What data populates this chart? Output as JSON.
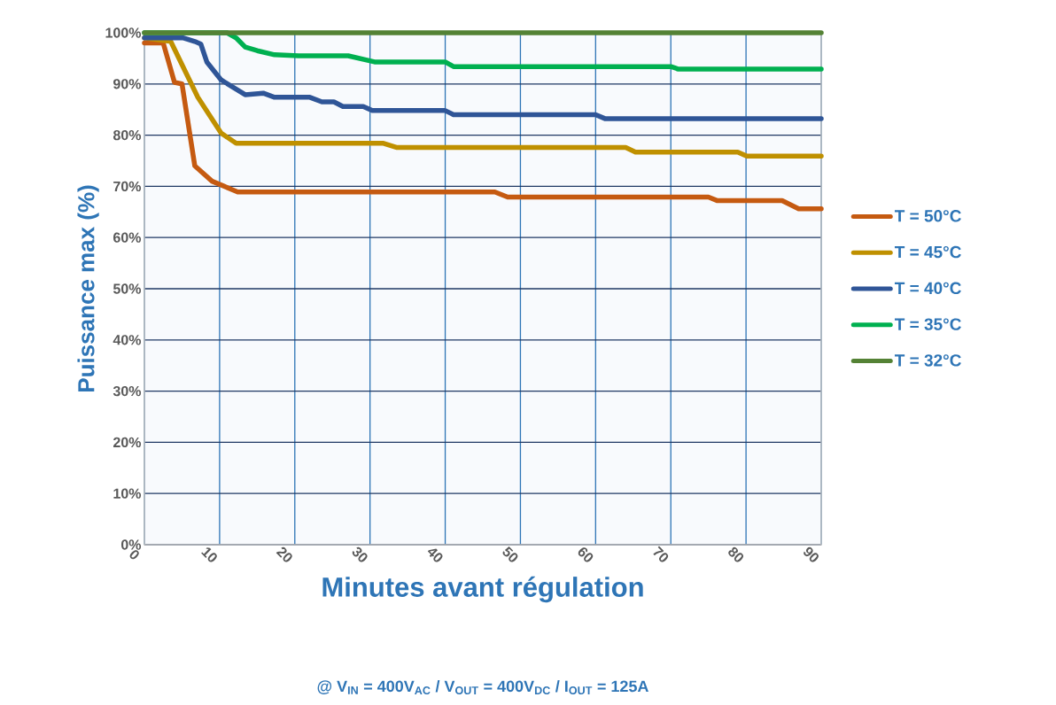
{
  "chart_data": {
    "type": "line",
    "xlabel": "Minutes avant régulation",
    "ylabel": "Puissance max (%)",
    "annotations": [
      "@ V$_{IN}$ = 400V$_{AC}$ / V$_{OUT}$ = 400V$_{DC}$ / I$_{OUT}$ = 125A"
    ],
    "xlim": [
      0,
      90
    ],
    "xticks": [
      0,
      10,
      20,
      30,
      40,
      50,
      60,
      70,
      80,
      90
    ],
    "ylim": [
      0,
      100
    ],
    "yticks": [
      {
        "value": 0,
        "label": "0%"
      },
      {
        "value": 10,
        "label": "10%"
      },
      {
        "value": 20,
        "label": "20%"
      },
      {
        "value": 30,
        "label": "30%"
      },
      {
        "value": 40,
        "label": "40%"
      },
      {
        "value": 50,
        "label": "50%"
      },
      {
        "value": 60,
        "label": "60%"
      },
      {
        "value": 70,
        "label": "70%"
      },
      {
        "value": 80,
        "label": "80%"
      },
      {
        "value": 90,
        "label": "90%"
      },
      {
        "value": 100,
        "label": "100%"
      }
    ],
    "grid": true,
    "legend": "right",
    "marker": "none",
    "line_style": "solid",
    "series": [
      {
        "name": "T = 50°C",
        "color": "#c55a11",
        "x": [
          0,
          2.5,
          4,
          5,
          6.7,
          9,
          12.4,
          46.6,
          48.3,
          75,
          76.2,
          84.8,
          87,
          90
        ],
        "values": [
          98,
          98,
          90.3,
          90,
          74,
          71,
          68.9,
          68.9,
          67.9,
          67.9,
          67.2,
          67.2,
          65.6,
          65.6
        ]
      },
      {
        "name": "T = 45°C",
        "color": "#bf9000",
        "x": [
          0,
          3.5,
          7.1,
          10.2,
          12.2,
          31.8,
          33.5,
          64,
          65.3,
          78.9,
          80.1,
          90
        ],
        "values": [
          99,
          98.3,
          87.4,
          80.4,
          78.4,
          78.4,
          77.6,
          77.6,
          76.7,
          76.7,
          75.9,
          75.9
        ]
      },
      {
        "name": "T = 40°C",
        "color": "#2f5597",
        "x": [
          0,
          5.2,
          6.7,
          7.5,
          8.3,
          10.2,
          13.4,
          15.8,
          17.3,
          22,
          23.6,
          25.2,
          26.4,
          29.1,
          30.3,
          40,
          41.1,
          60,
          61.3,
          90
        ],
        "values": [
          99,
          99,
          98.3,
          97.8,
          94.3,
          90.8,
          87.9,
          88.2,
          87.4,
          87.4,
          86.5,
          86.5,
          85.6,
          85.6,
          84.8,
          84.8,
          84,
          84,
          83.2,
          83.2
        ]
      },
      {
        "name": "T = 35°C",
        "color": "#00b050",
        "x": [
          0,
          11,
          12.2,
          13.4,
          15,
          17.3,
          20.5,
          27.1,
          30.6,
          40,
          41.1,
          70,
          71,
          90
        ],
        "values": [
          100,
          100,
          99,
          97.2,
          96.5,
          95.7,
          95.5,
          95.5,
          94.3,
          94.3,
          93.4,
          93.4,
          92.9,
          92.9
        ]
      },
      {
        "name": "T = 32°C",
        "color": "#548235",
        "x": [
          0,
          90
        ],
        "values": [
          100,
          100
        ]
      }
    ]
  }
}
